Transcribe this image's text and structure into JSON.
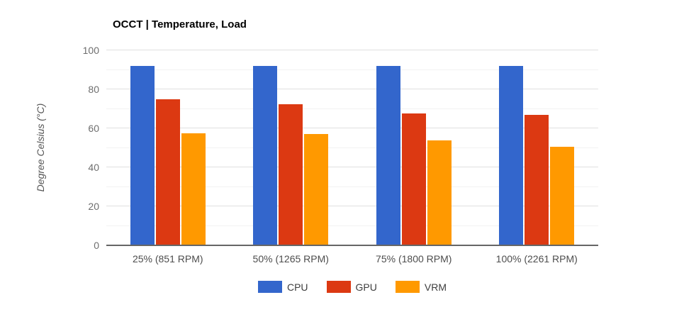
{
  "title": "OCCT | Temperature, Load",
  "y_axis": {
    "label": "Degree Celsius (°C)"
  },
  "chart_data": {
    "type": "bar",
    "title": "OCCT | Temperature, Load",
    "categories": [
      "25% (851 RPM)",
      "50% (1265 RPM)",
      "75% (1800 RPM)",
      "100% (2261 RPM)"
    ],
    "series": [
      {
        "name": "CPU",
        "color": "#3366CC",
        "values": [
          92,
          92,
          92,
          92
        ]
      },
      {
        "name": "GPU",
        "color": "#DC3912",
        "values": [
          75,
          72.5,
          67.5,
          67
        ]
      },
      {
        "name": "VRM",
        "color": "#FF9900",
        "values": [
          57.5,
          57,
          54,
          50.5
        ]
      }
    ],
    "xlabel": "",
    "ylabel": "Degree Celsius (°C)",
    "ylim": [
      0,
      100
    ],
    "major_ticks": [
      0,
      20,
      40,
      60,
      80,
      100
    ],
    "minor_ticks": [
      10,
      30,
      50,
      70,
      90
    ],
    "grid": true,
    "legend_position": "bottom",
    "colors": {
      "major_gridline": "#e0e0e0",
      "minor_gridline": "#f2f2f2",
      "baseline": "#666666",
      "y_tick_text": "#6e6e6e",
      "x_tick_text": "#4d4d4d",
      "legend_text": "#3d3d3d",
      "title_text": "#000000",
      "background": "#ffffff"
    }
  }
}
